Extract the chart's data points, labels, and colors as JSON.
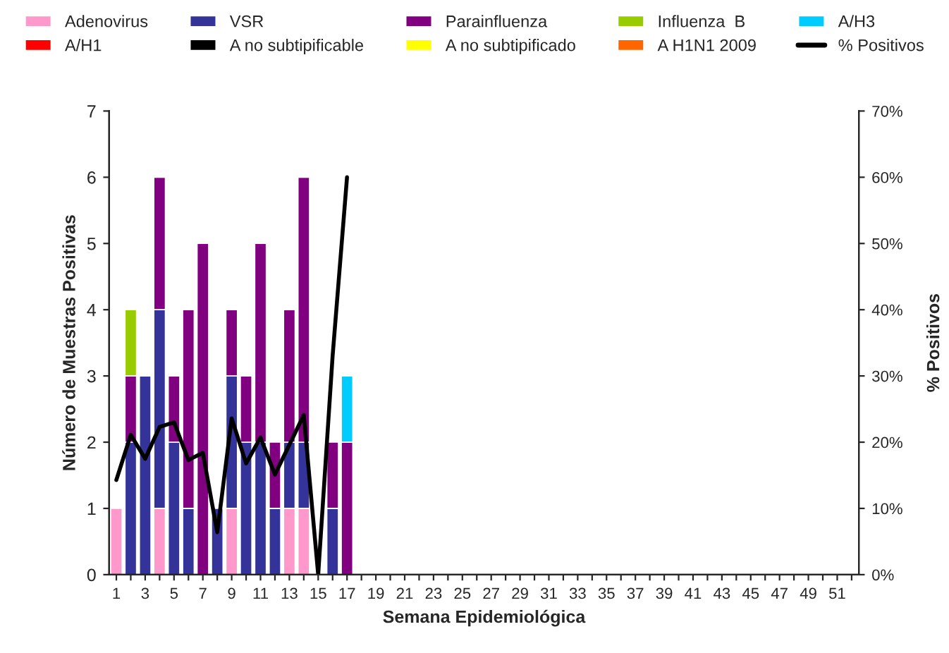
{
  "chart_data": {
    "type": "bar",
    "stacked": true,
    "xlabel": "Semana Epidemiológica",
    "ylabel": "Número de Muestras Positivas",
    "y2label": "% Positivos",
    "categories": [
      "1",
      null,
      "3",
      null,
      "5",
      null,
      "7",
      null,
      "9",
      null,
      "11",
      null,
      "13",
      null,
      "15",
      null,
      "17",
      null,
      "19",
      null,
      "21",
      null,
      "23",
      null,
      "25",
      null,
      "27",
      null,
      "29",
      null,
      "31",
      null,
      "33",
      null,
      "35",
      null,
      "37",
      null,
      "39",
      null,
      "41",
      null,
      "43",
      null,
      "45",
      null,
      "47",
      null,
      "49",
      null,
      "51",
      null
    ],
    "series": [
      {
        "name": "Adenovirus",
        "color": "#ff99cc",
        "values": [
          1,
          null,
          null,
          1,
          null,
          null,
          null,
          null,
          1,
          null,
          null,
          null,
          1,
          1,
          null,
          null,
          null,
          null,
          null,
          null,
          null,
          null,
          null,
          null,
          null,
          null,
          null,
          null,
          null,
          null,
          null,
          null,
          null,
          null,
          null,
          null,
          null,
          null,
          null,
          null,
          null,
          null,
          null,
          null,
          null,
          null,
          null,
          null,
          null,
          null,
          null,
          null
        ]
      },
      {
        "name": "VSR",
        "color": "#333399",
        "values": [
          null,
          2,
          3,
          3,
          2,
          1,
          null,
          1,
          2,
          2,
          2,
          1,
          1,
          1,
          null,
          1,
          null,
          null,
          null,
          null,
          null,
          null,
          null,
          null,
          null,
          null,
          null,
          null,
          null,
          null,
          null,
          null,
          null,
          null,
          null,
          null,
          null,
          null,
          null,
          null,
          null,
          null,
          null,
          null,
          null,
          null,
          null,
          null,
          null,
          null,
          null,
          null
        ]
      },
      {
        "name": "Parainfluenza",
        "color": "#800080",
        "values": [
          null,
          1,
          null,
          2,
          1,
          3,
          5,
          null,
          1,
          1,
          3,
          1,
          2,
          4,
          null,
          1,
          2,
          null,
          null,
          null,
          null,
          null,
          null,
          null,
          null,
          null,
          null,
          null,
          null,
          null,
          null,
          null,
          null,
          null,
          null,
          null,
          null,
          null,
          null,
          null,
          null,
          null,
          null,
          null,
          null,
          null,
          null,
          null,
          null,
          null,
          null,
          null
        ]
      },
      {
        "name": "Influenza  B",
        "color": "#99cc00",
        "values": [
          null,
          1,
          null,
          null,
          null,
          null,
          null,
          null,
          null,
          null,
          null,
          null,
          null,
          null,
          null,
          null,
          null,
          null,
          null,
          null,
          null,
          null,
          null,
          null,
          null,
          null,
          null,
          null,
          null,
          null,
          null,
          null,
          null,
          null,
          null,
          null,
          null,
          null,
          null,
          null,
          null,
          null,
          null,
          null,
          null,
          null,
          null,
          null,
          null,
          null,
          null,
          null
        ]
      },
      {
        "name": "A/H3",
        "color": "#00ccff",
        "values": [
          null,
          null,
          null,
          null,
          null,
          null,
          null,
          null,
          null,
          null,
          null,
          null,
          null,
          null,
          null,
          null,
          1,
          null,
          null,
          null,
          null,
          null,
          null,
          null,
          null,
          null,
          null,
          null,
          null,
          null,
          null,
          null,
          null,
          null,
          null,
          null,
          null,
          null,
          null,
          null,
          null,
          null,
          null,
          null,
          null,
          null,
          null,
          null,
          null,
          null,
          null,
          null
        ]
      },
      {
        "name": "A/H1",
        "color": "#ff0000",
        "values": [
          null,
          null,
          null,
          null,
          null,
          null,
          null,
          null,
          null,
          null,
          null,
          null,
          null,
          null,
          null,
          null,
          null,
          null,
          null,
          null,
          null,
          null,
          null,
          null,
          null,
          null,
          null,
          null,
          null,
          null,
          null,
          null,
          null,
          null,
          null,
          null,
          null,
          null,
          null,
          null,
          null,
          null,
          null,
          null,
          null,
          null,
          null,
          null,
          null,
          null,
          null,
          null
        ]
      },
      {
        "name": "A no subtipificable",
        "color": "#000000",
        "values": [
          null,
          null,
          null,
          null,
          null,
          null,
          null,
          null,
          null,
          null,
          null,
          null,
          null,
          null,
          null,
          null,
          null,
          null,
          null,
          null,
          null,
          null,
          null,
          null,
          null,
          null,
          null,
          null,
          null,
          null,
          null,
          null,
          null,
          null,
          null,
          null,
          null,
          null,
          null,
          null,
          null,
          null,
          null,
          null,
          null,
          null,
          null,
          null,
          null,
          null,
          null,
          null
        ]
      },
      {
        "name": "A no subtipificado",
        "color": "#ffff00",
        "values": [
          null,
          null,
          null,
          null,
          null,
          null,
          null,
          null,
          null,
          null,
          null,
          null,
          null,
          null,
          null,
          null,
          null,
          null,
          null,
          null,
          null,
          null,
          null,
          null,
          null,
          null,
          null,
          null,
          null,
          null,
          null,
          null,
          null,
          null,
          null,
          null,
          null,
          null,
          null,
          null,
          null,
          null,
          null,
          null,
          null,
          null,
          null,
          null,
          null,
          null,
          null,
          null
        ]
      },
      {
        "name": "A H1N1 2009",
        "color": "#ff6600",
        "values": [
          null,
          null,
          null,
          null,
          null,
          null,
          null,
          null,
          null,
          null,
          null,
          null,
          null,
          null,
          null,
          null,
          null,
          null,
          null,
          null,
          null,
          null,
          null,
          null,
          null,
          null,
          null,
          null,
          null,
          null,
          null,
          null,
          null,
          null,
          null,
          null,
          null,
          null,
          null,
          null,
          null,
          null,
          null,
          null,
          null,
          null,
          null,
          null,
          null,
          null,
          null,
          null
        ]
      },
      {
        "name": "% Positivos",
        "type": "line",
        "axis": "y2",
        "color": "#000000",
        "values": [
          14.3,
          21.1,
          17.5,
          22.3,
          23,
          17.3,
          18.4,
          6.4,
          23.6,
          16.8,
          20.7,
          15.1,
          19.6,
          24.1,
          0,
          33,
          60,
          null,
          null,
          null,
          null,
          null,
          null,
          null,
          null,
          null,
          null,
          null,
          null,
          null,
          null,
          null,
          null,
          null,
          null,
          null,
          null,
          null,
          null,
          null,
          null,
          null,
          null,
          null,
          null,
          null,
          null,
          null,
          null,
          null,
          null,
          null
        ]
      }
    ],
    "ylim": [
      0,
      7
    ],
    "yticks": [
      0,
      1,
      2,
      3,
      4,
      5,
      6,
      7
    ],
    "y2lim": [
      0,
      70
    ],
    "y2ticks": [
      {
        "value": 0,
        "label": "0%"
      },
      {
        "value": 10,
        "label": "10%"
      },
      {
        "value": 20,
        "label": "20%"
      },
      {
        "value": 30,
        "label": "30%"
      },
      {
        "value": 40,
        "label": "40%"
      },
      {
        "value": 50,
        "label": "50%"
      },
      {
        "value": 60,
        "label": "60%"
      },
      {
        "value": 70,
        "label": "70%"
      }
    ],
    "grid": false,
    "legend": "top"
  }
}
